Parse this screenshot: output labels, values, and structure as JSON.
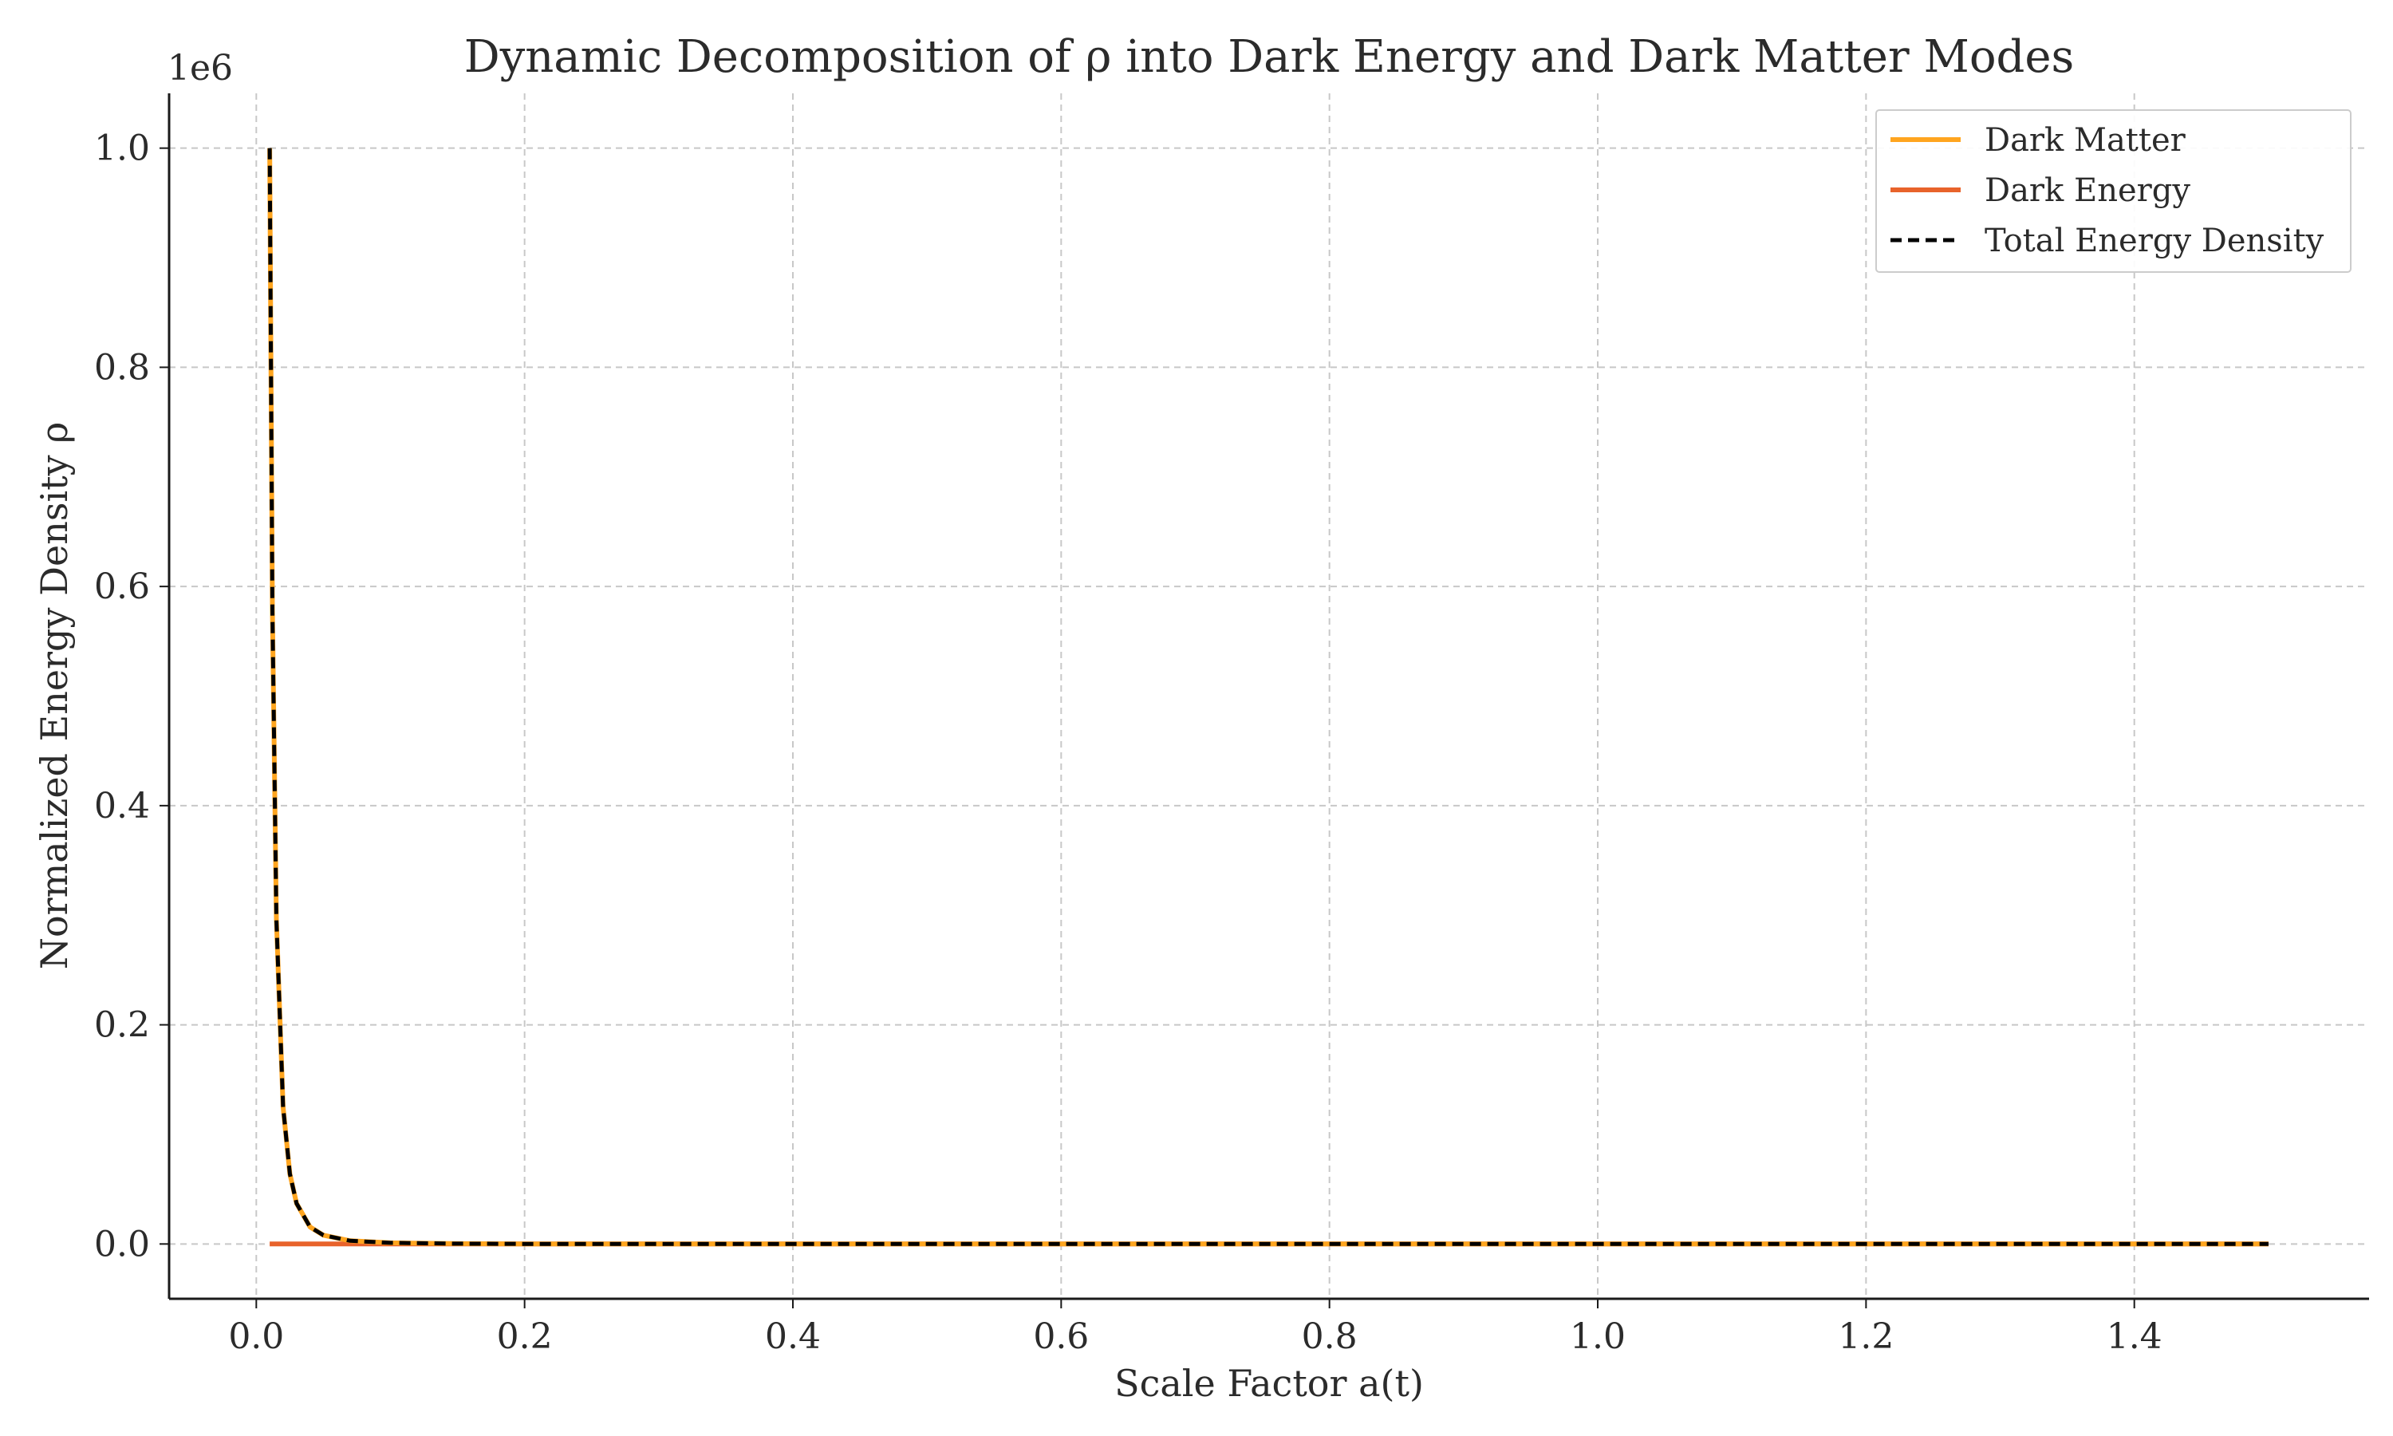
{
  "chart_data": {
    "type": "line",
    "title": "Dynamic Decomposition of ρ into Dark Energy and Dark Matter Modes",
    "xlabel": "Scale Factor a(t)",
    "ylabel": "Normalized Energy Density ρ",
    "y_offset_label": "1e6",
    "xlim": [
      -0.065,
      1.575
    ],
    "ylim": [
      -0.05,
      1.05
    ],
    "y_scale_factor": 1000000,
    "x_ticks": [
      0.0,
      0.2,
      0.4,
      0.6,
      0.8,
      1.0,
      1.2,
      1.4
    ],
    "x_tick_labels": [
      "0.0",
      "0.2",
      "0.4",
      "0.6",
      "0.8",
      "1.0",
      "1.2",
      "1.4"
    ],
    "y_ticks": [
      0.0,
      0.2,
      0.4,
      0.6,
      0.8,
      1.0
    ],
    "y_tick_labels": [
      "0.0",
      "0.2",
      "0.4",
      "0.6",
      "0.8",
      "1.0"
    ],
    "grid": true,
    "legend_position": "top-right",
    "x_range": [
      0.01,
      1.5
    ],
    "series": [
      {
        "name": "Dark Matter",
        "color": "#FFA51F",
        "style": "solid",
        "x": [
          0.01,
          0.012,
          0.015,
          0.02,
          0.025,
          0.03,
          0.04,
          0.05,
          0.07,
          0.1,
          0.15,
          0.2,
          0.3,
          0.5,
          0.75,
          1.0,
          1.25,
          1.5
        ],
        "values": [
          1.0,
          0.5787,
          0.2963,
          0.125,
          0.064,
          0.037,
          0.0156,
          0.008,
          0.0029,
          0.001,
          0.0003,
          0.0001,
          4e-05,
          1e-05,
          0.0,
          0.0,
          0.0,
          0.0
        ]
      },
      {
        "name": "Dark Energy",
        "color": "#E8632B",
        "style": "solid",
        "x": [
          0.01,
          1.5
        ],
        "values": [
          0.0,
          0.0
        ]
      },
      {
        "name": "Total Energy Density",
        "color": "#000000",
        "style": "dashed",
        "x": [
          0.01,
          0.012,
          0.015,
          0.02,
          0.025,
          0.03,
          0.04,
          0.05,
          0.07,
          0.1,
          0.15,
          0.2,
          0.3,
          0.5,
          0.75,
          1.0,
          1.25,
          1.5
        ],
        "values": [
          1.0,
          0.5787,
          0.2963,
          0.125,
          0.064,
          0.037,
          0.0156,
          0.008,
          0.0029,
          0.001,
          0.0003,
          0.0001,
          4e-05,
          1e-05,
          0.0,
          0.0,
          0.0,
          0.0
        ]
      }
    ]
  }
}
